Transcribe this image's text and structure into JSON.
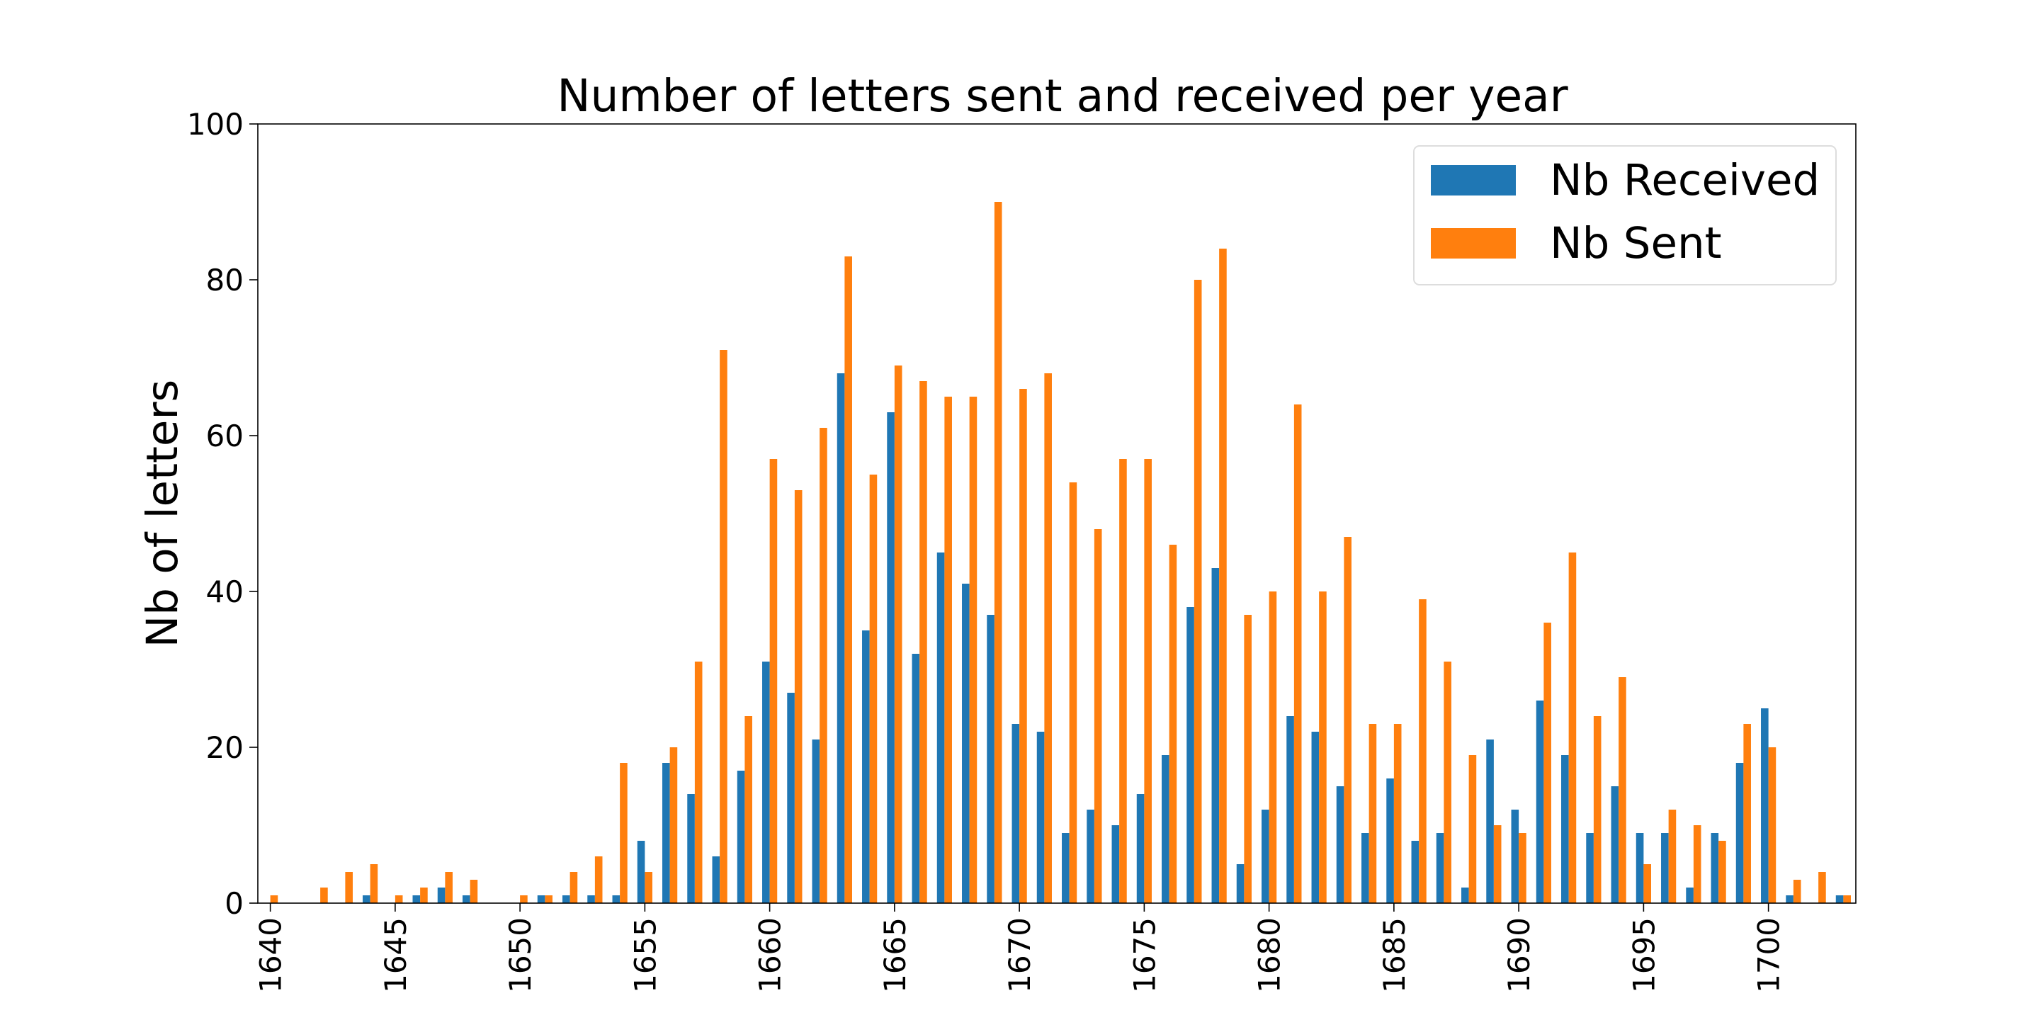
{
  "chart_data": {
    "type": "bar",
    "title": "Number of letters sent and received per year",
    "xlabel": "",
    "ylabel": "Nb of letters",
    "ylim": [
      0,
      100
    ],
    "yticks": [
      0,
      20,
      40,
      60,
      80,
      100
    ],
    "xtick_labels": [
      "1640",
      "1645",
      "1650",
      "1655",
      "1660",
      "1665",
      "1670",
      "1675",
      "1680",
      "1685",
      "1690",
      "1695",
      "1700"
    ],
    "grid": false,
    "legend_position": "top-right",
    "categories": [
      1640,
      1641,
      1642,
      1643,
      1644,
      1645,
      1646,
      1647,
      1648,
      1649,
      1650,
      1651,
      1652,
      1653,
      1654,
      1655,
      1656,
      1657,
      1658,
      1659,
      1660,
      1661,
      1662,
      1663,
      1664,
      1665,
      1666,
      1667,
      1668,
      1669,
      1670,
      1671,
      1672,
      1673,
      1674,
      1675,
      1676,
      1677,
      1678,
      1679,
      1680,
      1681,
      1682,
      1683,
      1684,
      1685,
      1686,
      1687,
      1688,
      1689,
      1690,
      1691,
      1692,
      1693,
      1694,
      1695,
      1696,
      1697,
      1698,
      1699,
      1700,
      1701,
      1702,
      1703
    ],
    "series": [
      {
        "name": "Nb Received",
        "color": "#1f77b4",
        "values": [
          0,
          0,
          0,
          0,
          1,
          0,
          1,
          2,
          1,
          0,
          0,
          1,
          1,
          1,
          1,
          8,
          18,
          14,
          6,
          17,
          31,
          27,
          21,
          68,
          35,
          63,
          32,
          45,
          41,
          37,
          23,
          22,
          9,
          12,
          10,
          14,
          19,
          38,
          43,
          5,
          12,
          24,
          22,
          15,
          9,
          16,
          8,
          9,
          2,
          21,
          12,
          26,
          19,
          9,
          15,
          9,
          9,
          2,
          9,
          18,
          25,
          1,
          0,
          1
        ]
      },
      {
        "name": "Nb Sent",
        "color": "#ff7f0e",
        "values": [
          1,
          0,
          2,
          4,
          5,
          1,
          2,
          4,
          3,
          0,
          1,
          1,
          4,
          6,
          18,
          4,
          20,
          31,
          71,
          24,
          57,
          53,
          61,
          83,
          55,
          69,
          67,
          65,
          65,
          90,
          66,
          68,
          54,
          48,
          57,
          57,
          46,
          80,
          84,
          37,
          40,
          64,
          40,
          47,
          23,
          23,
          39,
          31,
          19,
          10,
          9,
          36,
          45,
          24,
          29,
          5,
          12,
          10,
          8,
          23,
          20,
          3,
          4,
          1
        ]
      }
    ]
  }
}
